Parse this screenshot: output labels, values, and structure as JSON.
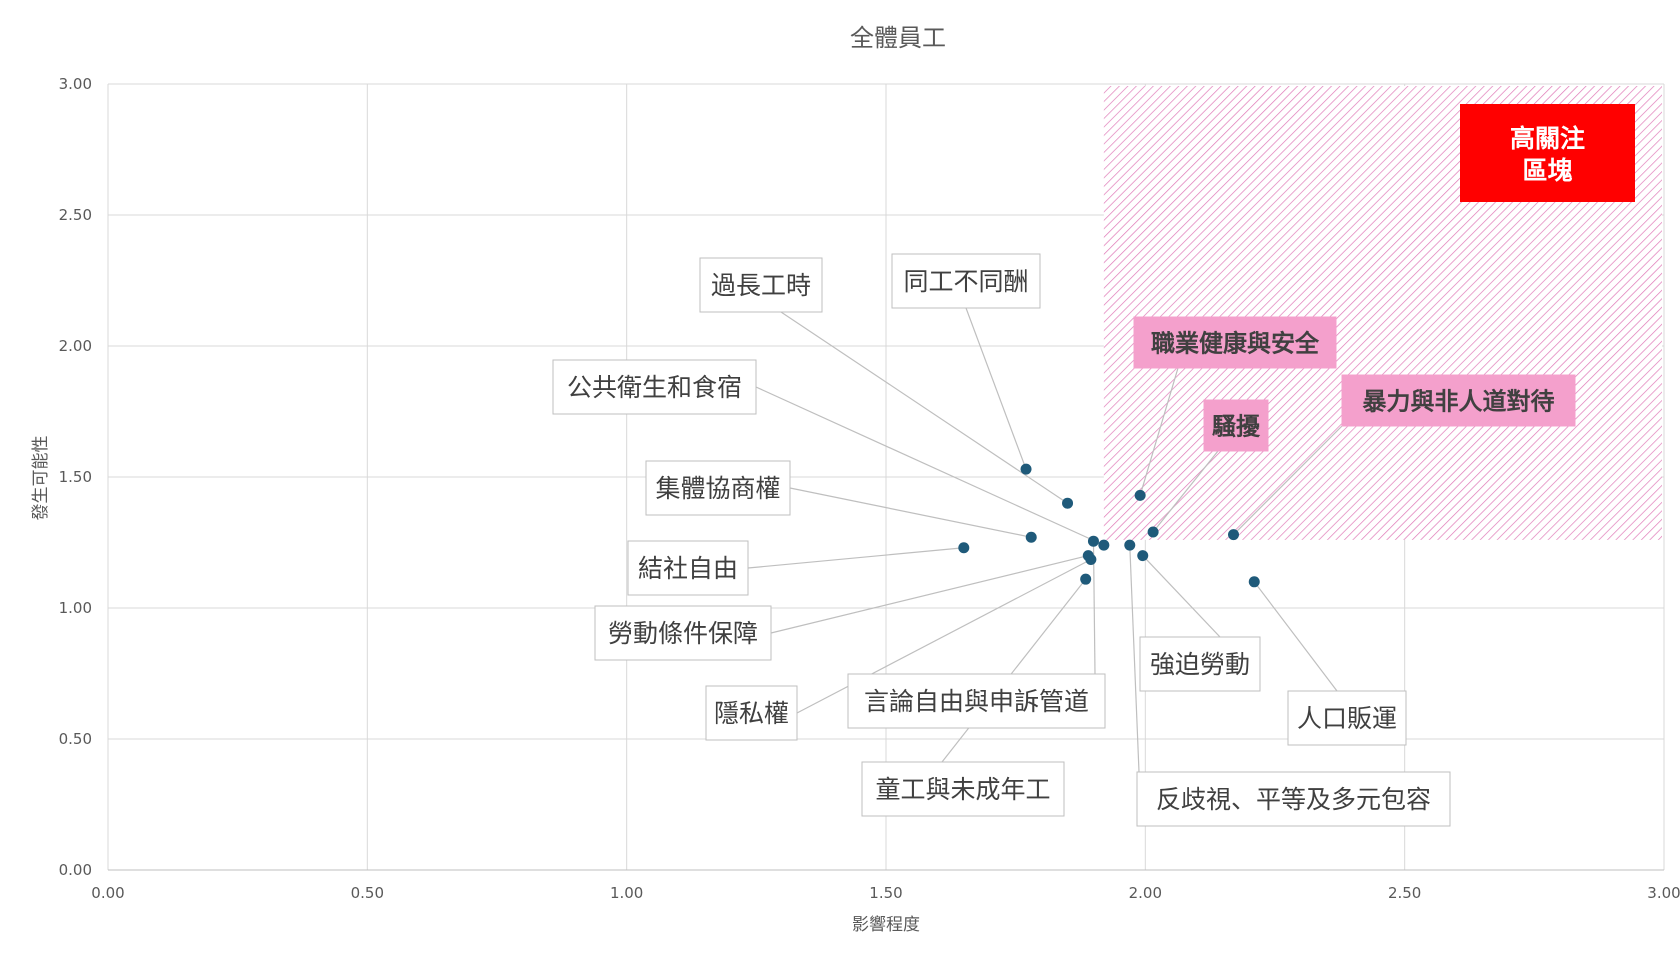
{
  "chart_data": {
    "type": "scatter",
    "title": "全體員工",
    "xlabel": "影響程度",
    "ylabel": "發生可能性",
    "xlim": [
      0,
      3
    ],
    "ylim": [
      0,
      3
    ],
    "x_ticks": [
      "0.00",
      "0.50",
      "1.00",
      "1.50",
      "2.00",
      "2.50",
      "3.00"
    ],
    "y_ticks": [
      "0.00",
      "0.50",
      "1.00",
      "1.50",
      "2.00",
      "2.50",
      "3.00"
    ],
    "grid": true,
    "point_color": "#1f5a7a",
    "high_concern_zone": {
      "x_range": [
        1.92,
        3.0
      ],
      "y_range": [
        1.26,
        3.0
      ],
      "hatch_color": "#e07ab8",
      "label": "高關注\n區塊",
      "label_color": "#ff0000"
    },
    "points": [
      {
        "name": "過長工時",
        "x": 1.85,
        "y": 1.4,
        "highlight": false
      },
      {
        "name": "同工不同酬",
        "x": 1.77,
        "y": 1.53,
        "highlight": false
      },
      {
        "name": "公共衛生和食宿",
        "x": 1.92,
        "y": 1.24,
        "highlight": false
      },
      {
        "name": "集體協商權",
        "x": 1.78,
        "y": 1.27,
        "highlight": false
      },
      {
        "name": "結社自由",
        "x": 1.65,
        "y": 1.23,
        "highlight": false
      },
      {
        "name": "勞動條件保障",
        "x": 1.89,
        "y": 1.2,
        "highlight": false
      },
      {
        "name": "隱私權",
        "x": 1.895,
        "y": 1.185,
        "highlight": false
      },
      {
        "name": "言論自由與申訴管道",
        "x": 1.9,
        "y": 1.255,
        "highlight": false
      },
      {
        "name": "童工與未成年工",
        "x": 1.885,
        "y": 1.11,
        "highlight": false
      },
      {
        "name": "反歧視、平等及多元包容",
        "x": 1.97,
        "y": 1.24,
        "highlight": false
      },
      {
        "name": "強迫勞動",
        "x": 1.995,
        "y": 1.2,
        "highlight": false
      },
      {
        "name": "人口販運",
        "x": 2.21,
        "y": 1.1,
        "highlight": false
      },
      {
        "name": "職業健康與安全",
        "x": 1.99,
        "y": 1.43,
        "highlight": true
      },
      {
        "name": "騷擾",
        "x": 2.015,
        "y": 1.29,
        "highlight": true
      },
      {
        "name": "暴力與非人道對待",
        "x": 2.17,
        "y": 1.28,
        "highlight": true
      }
    ]
  }
}
